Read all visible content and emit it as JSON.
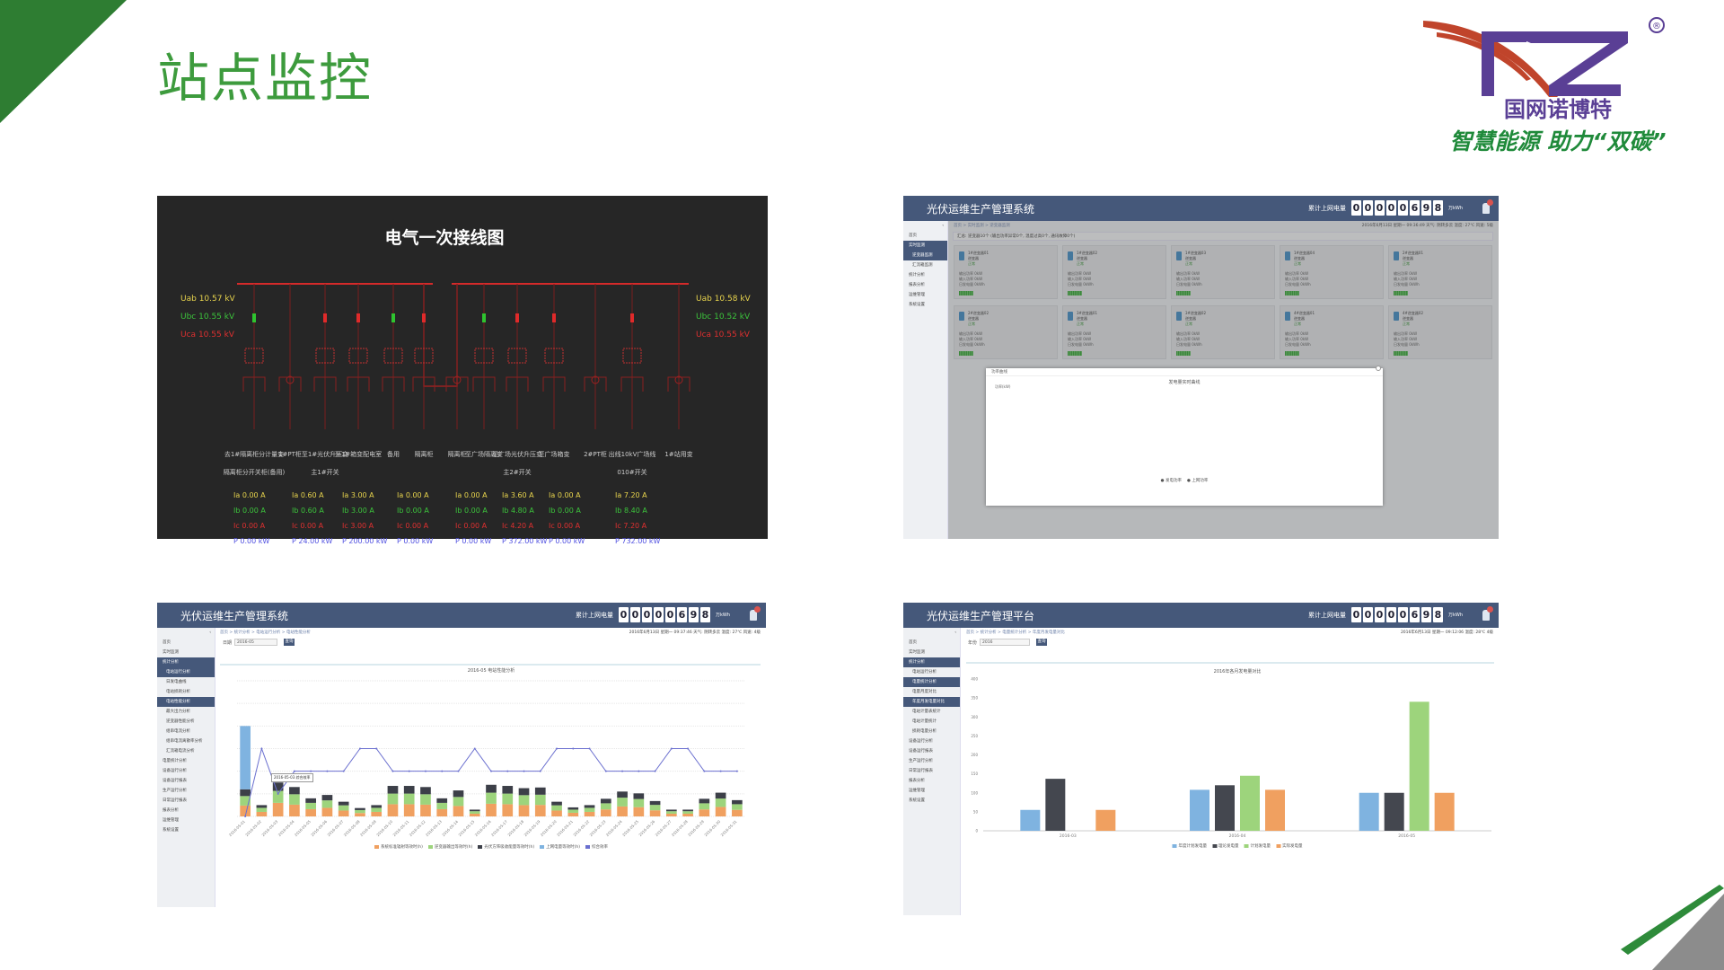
{
  "page": {
    "title": "站点监控"
  },
  "logo": {
    "brand": "NZ",
    "company": "国网诺博特",
    "slogan": "智慧能源 助力“双碳”",
    "registered": "®"
  },
  "diagram": {
    "title": "电气一次接线图",
    "left_voltage": [
      {
        "label": "Uab",
        "value": "10.57",
        "unit": "kV",
        "color": "#e8d44d"
      },
      {
        "label": "Ubc",
        "value": "10.55",
        "unit": "kV",
        "color": "#3cc43c"
      },
      {
        "label": "Uca",
        "value": "10.55",
        "unit": "kV",
        "color": "#e03030"
      }
    ],
    "right_voltage": [
      {
        "label": "Uab",
        "value": "10.58",
        "unit": "kV",
        "color": "#e8d44d"
      },
      {
        "label": "Ubc",
        "value": "10.52",
        "unit": "kV",
        "color": "#3cc43c"
      },
      {
        "label": "Uca",
        "value": "10.55",
        "unit": "kV",
        "color": "#e03030"
      }
    ],
    "feeders": [
      {
        "label": "去1#隔离柜分计量变",
        "label2": "隔离柜分开关柜(备用)",
        "breaker": "closed"
      },
      {
        "label": "1#PT柜",
        "label2": "",
        "breaker": "none"
      },
      {
        "label": "至1#光伏升压变",
        "label2": "主1#开关",
        "breaker": "open"
      },
      {
        "label": "至1#箱变配电室",
        "label2": "",
        "breaker": "open"
      },
      {
        "label": "备用",
        "label2": "",
        "breaker": "closed"
      },
      {
        "label": "隔离柜",
        "label2": "",
        "breaker": "open"
      },
      {
        "label": "隔离柜",
        "label2": "",
        "breaker": "none"
      },
      {
        "label": "至广场隔离变",
        "label2": "",
        "breaker": "closed"
      },
      {
        "label": "至广场光伏升压变",
        "label2": "主2#开关",
        "breaker": "open"
      },
      {
        "label": "至广场箱变",
        "label2": "",
        "breaker": "open"
      },
      {
        "label": "2#PT柜",
        "label2": "",
        "breaker": "none"
      },
      {
        "label": "出线10kV广场线",
        "label2": "010#开关",
        "breaker": "open"
      },
      {
        "label": "1#站用变",
        "label2": "",
        "breaker": "none"
      }
    ],
    "measurements": [
      {
        "Ia": "0.00",
        "Ib": "0.00",
        "Ic": "0.00",
        "P": "0.00",
        "Punit": "kW"
      },
      {
        "Ia": "0.60",
        "Ib": "0.60",
        "Ic": "0.00",
        "P": "24.00",
        "Punit": "kW"
      },
      {
        "Ia": "3.00",
        "Ib": "3.00",
        "Ic": "3.00",
        "P": "200.00",
        "Punit": "kW"
      },
      {
        "Ia": "0.00",
        "Ib": "0.00",
        "Ic": "0.00",
        "P": "0.00",
        "Punit": "kW"
      },
      {
        "Ia": "0.00",
        "Ib": "0.00",
        "Ic": "0.00",
        "P": "0.00",
        "Punit": "kW"
      },
      {
        "Ia": "3.60",
        "Ib": "4.80",
        "Ic": "4.20",
        "P": "372.00",
        "Punit": "kW"
      },
      {
        "Ia": "0.00",
        "Ib": "0.00",
        "Ic": "0.00",
        "P": "0.00",
        "Punit": "kW"
      },
      {
        "Ia": "7.20",
        "Ib": "8.40",
        "Ic": "7.20",
        "P": "732.00",
        "Punit": "kW"
      }
    ],
    "colors": {
      "bus": "#d42a2a",
      "closed": "#2fc42f",
      "open": "#e02a2a",
      "Ia": "#e8d44d",
      "Ib": "#3cc43c",
      "Ic": "#e03030",
      "P": "#5050e0"
    }
  },
  "system": {
    "title_a": "光伏运维生产管理系统",
    "title_b": "光伏运维生产管理平台",
    "counter_label": "累计上网电量",
    "counter_digits": [
      "0",
      "0",
      "0",
      "0",
      "0",
      "6",
      "9",
      "8"
    ],
    "counter_unit": "万kWh",
    "header_color": "#45587a"
  },
  "monitor": {
    "breadcrumb": "首页 > 实时监测 > 逆变器监测",
    "info": "2016年6月13日 星期一 09:36:49  天气: 阴转多云 温度: 27℃ 风速: 5级",
    "notice": "汇总: 逆变器10个 (输出功率异常0个, 温度过高0个, 通讯故障0个)",
    "sidebar": [
      {
        "label": "首页",
        "state": ""
      },
      {
        "label": "实时监测",
        "state": "act"
      },
      {
        "label": "逆变器监测",
        "state": "act sub"
      },
      {
        "label": "汇流箱监测",
        "state": "sub"
      },
      {
        "label": "统计分析",
        "state": ""
      },
      {
        "label": "报表分析",
        "state": ""
      },
      {
        "label": "运维管理",
        "state": ""
      },
      {
        "label": "系统设置",
        "state": ""
      }
    ],
    "cards": [
      {
        "name": "1#逆变器01",
        "status": "正常"
      },
      {
        "name": "1#逆变器02",
        "status": "正常"
      },
      {
        "name": "1#逆变器03",
        "status": "正常"
      },
      {
        "name": "1#逆变器04",
        "status": "正常"
      },
      {
        "name": "2#逆变器01",
        "status": "正常"
      },
      {
        "name": "2#逆变器02",
        "status": "正常"
      },
      {
        "name": "3#逆变器01",
        "status": "正常"
      },
      {
        "name": "3#逆变器02",
        "status": "正常"
      },
      {
        "name": "4#逆变器01",
        "status": "正常"
      },
      {
        "name": "4#逆变器02",
        "status": "正常"
      }
    ],
    "card_fields": [
      "输出功率 0kW",
      "输入功率 0kW",
      "日发电量 0kWh"
    ],
    "card_type": "逆变器",
    "modal": {
      "header": "功率曲线",
      "title": "发电量实时曲线",
      "axis": "功率(kW)",
      "legend": [
        "发电功率",
        "上网功率"
      ]
    }
  },
  "daily": {
    "breadcrumb": "首页 > 统计分析 > 电站运行分析 > 电站性能分析",
    "info": "2016年6月13日 星期一 09:37:46  天气: 阴转多云 温度: 27℃ 风速: 4级",
    "query_label": "日期",
    "query_value": "2016-05",
    "query_button": "查询",
    "tooltip": "2016-05-03 综合效率",
    "sidebar": [
      {
        "label": "首页",
        "state": ""
      },
      {
        "label": "实时监测",
        "state": ""
      },
      {
        "label": "统计分析",
        "state": "act"
      },
      {
        "label": "电站运行分析",
        "state": "act sub"
      },
      {
        "label": "日发电曲线",
        "state": "sub"
      },
      {
        "label": "电站损耗分析",
        "state": "sub"
      },
      {
        "label": "电站性能分析",
        "state": "act sub"
      },
      {
        "label": "最大出力分析",
        "state": "sub"
      },
      {
        "label": "逆变器性能分析",
        "state": "sub"
      },
      {
        "label": "组串电流分析",
        "state": "sub"
      },
      {
        "label": "组串电流离散率分析",
        "state": "sub"
      },
      {
        "label": "汇流箱电流分析",
        "state": "sub"
      },
      {
        "label": "电量统计分析",
        "state": ""
      },
      {
        "label": "设备运行分析",
        "state": ""
      },
      {
        "label": "设备运行报表",
        "state": ""
      },
      {
        "label": "生产运行分析",
        "state": ""
      },
      {
        "label": "日常运行报表",
        "state": ""
      },
      {
        "label": "报表分析",
        "state": ""
      },
      {
        "label": "运维管理",
        "state": ""
      },
      {
        "label": "系统设置",
        "state": ""
      }
    ]
  },
  "monthly": {
    "breadcrumb": "首页 > 统计分析 > 电量统计分析 > 年度月发电量对比",
    "info": "2016年6月13日 星期一 09:12:06  温度: 28℃ 4级",
    "query_label": "年份",
    "query_value": "2016",
    "query_button": "查询",
    "sidebar": [
      {
        "label": "首页",
        "state": ""
      },
      {
        "label": "实时监测",
        "state": ""
      },
      {
        "label": "统计分析",
        "state": "act"
      },
      {
        "label": "电站运行分析",
        "state": "sub"
      },
      {
        "label": "电量统计分析",
        "state": "act sub"
      },
      {
        "label": "电量月度对比",
        "state": "sub"
      },
      {
        "label": "年度月发电量对比",
        "state": "act sub"
      },
      {
        "label": "电站计量表统计",
        "state": "sub"
      },
      {
        "label": "电站计量统计",
        "state": "sub"
      },
      {
        "label": "损耗电量分析",
        "state": "sub"
      },
      {
        "label": "设备运行分析",
        "state": ""
      },
      {
        "label": "设备运行报表",
        "state": ""
      },
      {
        "label": "生产运行分析",
        "state": ""
      },
      {
        "label": "日常运行报表",
        "state": ""
      },
      {
        "label": "报表分析",
        "state": ""
      },
      {
        "label": "运维管理",
        "state": ""
      },
      {
        "label": "系统设置",
        "state": ""
      }
    ]
  },
  "chart_data": [
    {
      "type": "bar",
      "title": "2016-05 电站性能分析",
      "categories": [
        "2016-05-01",
        "2016-05-02",
        "2016-05-03",
        "2016-05-04",
        "2016-05-05",
        "2016-05-06",
        "2016-05-07",
        "2016-05-08",
        "2016-05-09",
        "2016-05-10",
        "2016-05-11",
        "2016-05-12",
        "2016-05-13",
        "2016-05-14",
        "2016-05-15",
        "2016-05-16",
        "2016-05-17",
        "2016-05-18",
        "2016-05-19",
        "2016-05-20",
        "2016-05-21",
        "2016-05-22",
        "2016-05-23",
        "2016-05-24",
        "2016-05-25",
        "2016-05-26",
        "2016-05-27",
        "2016-05-28",
        "2016-05-29",
        "2016-05-30",
        "2016-05-31"
      ],
      "stacked": true,
      "ylim": [
        0,
        6
      ],
      "y2lim": [
        0,
        6
      ],
      "grid": true,
      "legend": "bottom",
      "series": [
        {
          "name": "系统标准辐射等效时(h)",
          "color": "#f0a060",
          "values": [
            0.48,
            0.2,
            0.6,
            0.52,
            0.32,
            0.38,
            0.26,
            0.15,
            0.2,
            0.54,
            0.54,
            0.52,
            0.32,
            0.46,
            0.12,
            0.56,
            0.54,
            0.5,
            0.51,
            0.26,
            0.16,
            0.2,
            0.31,
            0.44,
            0.41,
            0.27,
            0.12,
            0.12,
            0.31,
            0.42,
            0.29
          ]
        },
        {
          "name": "逆变器输出等效时(h)",
          "color": "#9dd47c",
          "values": [
            0.42,
            0.18,
            0.53,
            0.46,
            0.28,
            0.33,
            0.23,
            0.13,
            0.18,
            0.47,
            0.47,
            0.46,
            0.28,
            0.4,
            0.11,
            0.49,
            0.47,
            0.44,
            0.45,
            0.23,
            0.14,
            0.18,
            0.27,
            0.39,
            0.36,
            0.24,
            0.11,
            0.11,
            0.27,
            0.37,
            0.25
          ]
        },
        {
          "name": "光伏方阵吸收能量等效时(h)",
          "color": "#3c3f48",
          "values": [
            0.3,
            0.12,
            0.37,
            0.32,
            0.2,
            0.24,
            0.16,
            0.09,
            0.12,
            0.34,
            0.34,
            0.32,
            0.2,
            0.29,
            0.07,
            0.35,
            0.34,
            0.31,
            0.32,
            0.16,
            0.1,
            0.12,
            0.2,
            0.27,
            0.25,
            0.17,
            0.07,
            0.07,
            0.2,
            0.26,
            0.18
          ]
        },
        {
          "name": "上网电量等效时(h)",
          "color": "#7fb3e0",
          "values": [
            2.8,
            0,
            0,
            0,
            0,
            0,
            0,
            0,
            0,
            0,
            0,
            0,
            0,
            0,
            0,
            0,
            0,
            0,
            0,
            0,
            0,
            0,
            0,
            0,
            0,
            0,
            0,
            0,
            0,
            0,
            0
          ]
        },
        {
          "name": "综合效率",
          "type": "line",
          "axis": "right",
          "color": "#6a6fcf",
          "values": [
            0,
            3,
            1,
            2,
            2,
            2,
            2,
            3,
            3,
            2,
            2,
            2,
            2,
            2,
            3,
            2,
            2,
            2,
            2,
            3,
            3,
            3,
            2,
            2,
            2,
            2,
            3,
            3,
            2,
            2,
            2
          ]
        }
      ]
    },
    {
      "type": "bar",
      "title": "2016年各月发电量对比",
      "categories": [
        "2016-03",
        "2016-04",
        "2016-05"
      ],
      "ylim": [
        0,
        400
      ],
      "yticks": [
        "0",
        "50",
        "100",
        "150",
        "200",
        "250",
        "300",
        "350",
        "400"
      ],
      "grid": false,
      "legend": "bottom",
      "series": [
        {
          "name": "年度计划发电量",
          "color": "#7fb3e0",
          "values": [
            55,
            108,
            100
          ]
        },
        {
          "name": "理论发电量",
          "color": "#44474f",
          "values": [
            137,
            120,
            100
          ]
        },
        {
          "name": "计划发电量",
          "color": "#9dd47c",
          "values": [
            0,
            145,
            340
          ]
        },
        {
          "name": "实际发电量",
          "color": "#f0a060",
          "values": [
            55,
            108,
            100
          ]
        }
      ]
    }
  ]
}
